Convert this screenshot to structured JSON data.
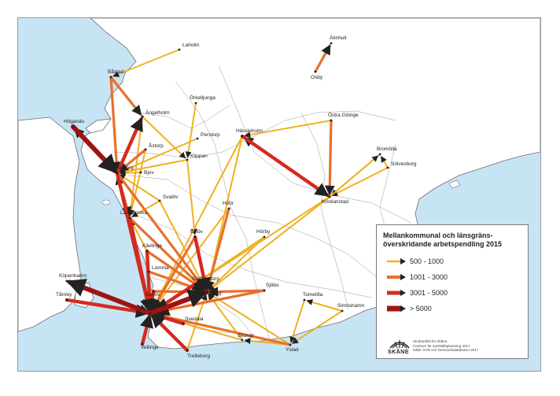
{
  "legend": {
    "title_line1": "Mellankommunal och länsgräns-",
    "title_line2": "överskridande arbetspendling 2015",
    "classes": [
      {
        "label": "500 - 1000",
        "color": "#f0b020"
      },
      {
        "label": "1001 - 3000",
        "color": "#e8702a"
      },
      {
        "label": "3001 - 5000",
        "color": "#d42a1e"
      },
      {
        "label": "> 5000",
        "color": "#9e1412"
      }
    ]
  },
  "credits": {
    "line1": "Strukturbild för Skåne.",
    "line2": "Centrum för samhällsplanering 2017",
    "line3": "Källa: SCB och Öresundsdatabasen 2017"
  },
  "brand": {
    "name": "SKÅNE"
  },
  "colors": {
    "sea": "#c7e4f4",
    "land": "#ffffff",
    "border": "#6e6e6e"
  },
  "towns": [
    {
      "name": "Älmhult"
    },
    {
      "name": "Laholm"
    },
    {
      "name": "Båstad"
    },
    {
      "name": "Osby"
    },
    {
      "name": "Örkelljunga"
    },
    {
      "name": "Ängelholm"
    },
    {
      "name": "Höganäs"
    },
    {
      "name": "Östra Göinge"
    },
    {
      "name": "Perstorp"
    },
    {
      "name": "Hässleholm"
    },
    {
      "name": "Åstorp"
    },
    {
      "name": "Klippan"
    },
    {
      "name": "Bromölla"
    },
    {
      "name": "Sölvesborg"
    },
    {
      "name": "Helsingborg"
    },
    {
      "name": "Bjuv"
    },
    {
      "name": "Kristianstad"
    },
    {
      "name": "Svalöv"
    },
    {
      "name": "Landskrona"
    },
    {
      "name": "Hörby"
    },
    {
      "name": "Höör"
    },
    {
      "name": "Eslöv"
    },
    {
      "name": "Kävlinge"
    },
    {
      "name": "Köpenhamn"
    },
    {
      "name": "Lomma"
    },
    {
      "name": "Staffanstorp"
    },
    {
      "name": "Burlöv"
    },
    {
      "name": "Lund"
    },
    {
      "name": "Sjöbo"
    },
    {
      "name": "Tomelilla"
    },
    {
      "name": "Simrishamn"
    },
    {
      "name": "Tårnby"
    },
    {
      "name": "Malmö"
    },
    {
      "name": "Svedala"
    },
    {
      "name": "Vellinge"
    },
    {
      "name": "Skurup"
    },
    {
      "name": "Ystad"
    },
    {
      "name": "Trelleborg"
    }
  ]
}
